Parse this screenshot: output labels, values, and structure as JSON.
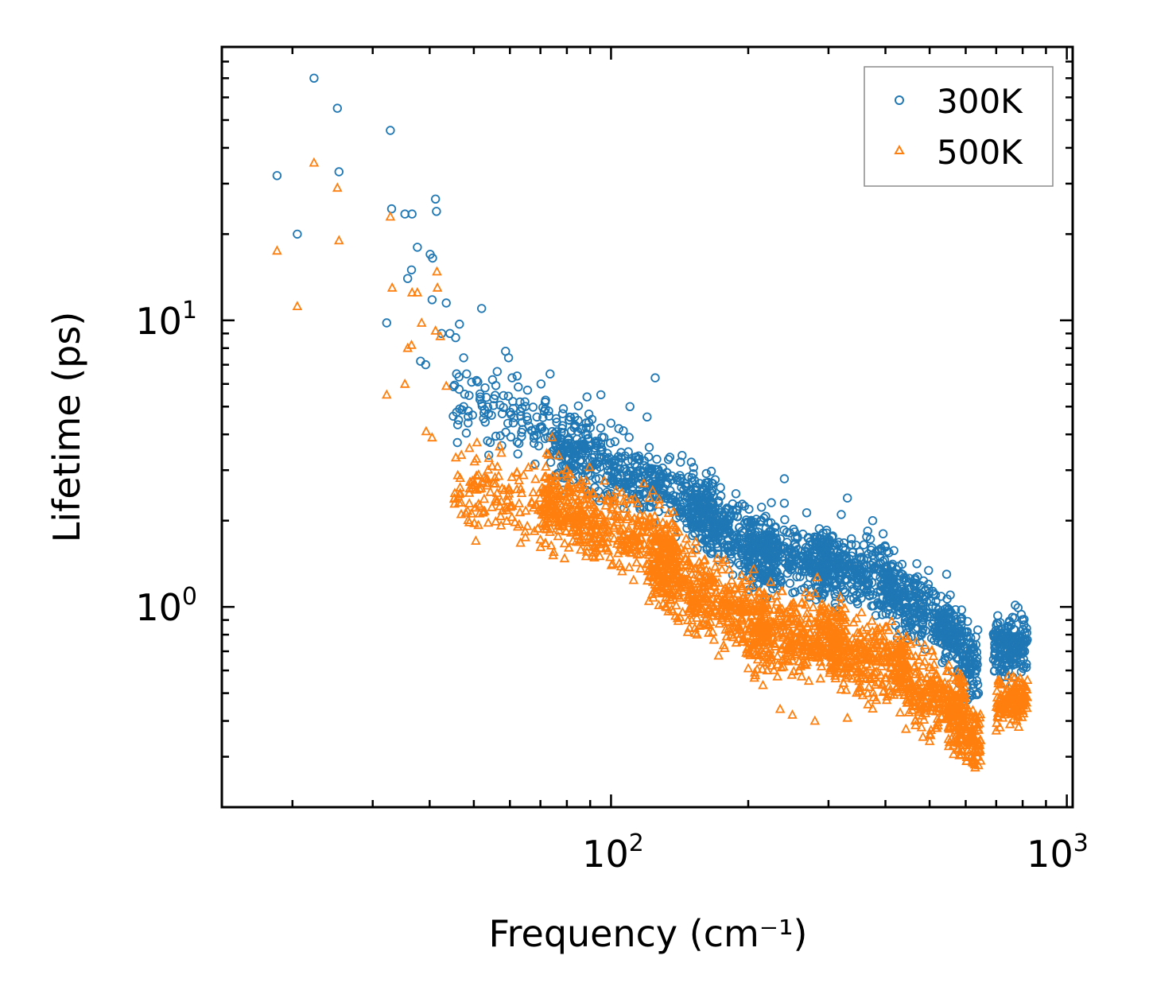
{
  "chart_data": {
    "type": "scatter",
    "title": "",
    "xlabel": "Frequency (cm⁻¹)",
    "ylabel": "Lifetime (ps)",
    "xscale": "log",
    "yscale": "log",
    "xlim": [
      14,
      1030
    ],
    "ylim": [
      0.2,
      90
    ],
    "x_ticks": [
      100,
      1000
    ],
    "x_tick_labels": [
      "10²",
      "10³"
    ],
    "y_ticks": [
      1,
      10
    ],
    "y_tick_labels": [
      "10⁰",
      "10¹"
    ],
    "legend": {
      "location": "top-right"
    },
    "series": [
      {
        "name": "300K",
        "marker": "circle",
        "color": "#1f77b4",
        "points": [
          [
            18.5,
            32
          ],
          [
            20.5,
            20
          ],
          [
            22.3,
            70
          ],
          [
            25.1,
            55
          ],
          [
            25.3,
            33
          ],
          [
            32.2,
            9.8
          ],
          [
            32.8,
            46
          ],
          [
            33,
            24.5
          ],
          [
            35.3,
            23.5
          ],
          [
            36.6,
            23.5
          ],
          [
            35.8,
            14
          ],
          [
            36.5,
            15
          ],
          [
            37.6,
            18
          ],
          [
            38.2,
            7.2
          ],
          [
            39.2,
            7.0
          ],
          [
            40.1,
            17
          ],
          [
            40.6,
            16.5
          ],
          [
            41.2,
            26.5
          ],
          [
            41.4,
            24
          ],
          [
            40.5,
            11.8
          ],
          [
            42.5,
            9
          ],
          [
            43.5,
            11.5
          ],
          [
            44.3,
            9.0
          ],
          [
            45.6,
            8.7
          ],
          [
            46.5,
            9.7
          ],
          [
            47.5,
            7.4
          ],
          [
            48.2,
            6.5
          ],
          [
            52,
            11
          ],
          [
            58.7,
            7.8
          ],
          [
            59.6,
            7.4
          ],
          [
            70.2,
            6.0
          ],
          [
            73.5,
            6.5
          ],
          [
            95,
            5.5
          ],
          [
            110,
            5.0
          ],
          [
            120,
            4.6
          ],
          [
            125,
            6.3
          ],
          [
            150,
            3.2
          ],
          [
            240,
            2.8
          ],
          [
            240,
            2.3
          ],
          [
            320,
            2.1
          ],
          [
            330,
            2.4
          ],
          [
            375,
            2.0
          ],
          [
            545,
            1.3
          ],
          [
            555,
            1.1
          ],
          [
            605,
            0.82
          ],
          [
            640,
            0.5
          ],
          [
            760,
            0.92
          ],
          [
            800,
            0.9
          ]
        ],
        "clusters": [
          {
            "x": [
              45,
              90
            ],
            "y_center": [
              5.2,
              3.8
            ],
            "spread": 0.13,
            "count": 160
          },
          {
            "x": [
              75,
              170
            ],
            "y_center": [
              3.6,
              2.2
            ],
            "spread": 0.12,
            "count": 480
          },
          {
            "x": [
              150,
              230
            ],
            "y_center": [
              2.2,
              1.45
            ],
            "spread": 0.12,
            "count": 300
          },
          {
            "x": [
              200,
              300
            ],
            "y_center": [
              1.6,
              1.4
            ],
            "spread": 0.12,
            "count": 300
          },
          {
            "x": [
              280,
              420
            ],
            "y_center": [
              1.45,
              1.25
            ],
            "spread": 0.12,
            "count": 300
          },
          {
            "x": [
              400,
              550
            ],
            "y_center": [
              1.15,
              0.85
            ],
            "spread": 0.11,
            "count": 260
          },
          {
            "x": [
              540,
              640
            ],
            "y_center": [
              0.85,
              0.6
            ],
            "spread": 0.12,
            "count": 160
          },
          {
            "x": [
              690,
              820
            ],
            "y_center": [
              0.72,
              0.75
            ],
            "spread": 0.1,
            "count": 180
          }
        ]
      },
      {
        "name": "500K",
        "marker": "triangle",
        "color": "#ff7f0e",
        "points": [
          [
            18.5,
            17.5
          ],
          [
            20.5,
            11.2
          ],
          [
            22.3,
            35.5
          ],
          [
            25.1,
            29
          ],
          [
            25.3,
            19
          ],
          [
            32.2,
            5.5
          ],
          [
            32.8,
            23
          ],
          [
            33.1,
            13
          ],
          [
            35.3,
            6.0
          ],
          [
            35.8,
            8.0
          ],
          [
            36.5,
            8.2
          ],
          [
            36.6,
            12.5
          ],
          [
            37.6,
            12.5
          ],
          [
            38.4,
            9.8
          ],
          [
            39.3,
            4.1
          ],
          [
            40.5,
            3.9
          ],
          [
            41.2,
            9.2
          ],
          [
            41.5,
            14.8
          ],
          [
            41.6,
            13.0
          ],
          [
            42.2,
            8.8
          ],
          [
            43.5,
            5.9
          ],
          [
            50.5,
            1.7
          ],
          [
            118,
            2.7
          ],
          [
            160,
            1.45
          ],
          [
            175,
            1.35
          ],
          [
            200,
            0.61
          ],
          [
            220,
            0.6
          ],
          [
            235,
            0.44
          ],
          [
            250,
            0.42
          ],
          [
            280,
            0.4
          ],
          [
            330,
            0.41
          ],
          [
            465,
            0.4
          ],
          [
            480,
            0.38
          ],
          [
            500,
            0.34
          ],
          [
            560,
            0.5
          ],
          [
            640,
            0.28
          ],
          [
            700,
            0.37
          ]
        ],
        "clusters": [
          {
            "x": [
              45,
              90
            ],
            "y_center": [
              2.6,
              2.3
            ],
            "spread": 0.15,
            "count": 200
          },
          {
            "x": [
              70,
              140
            ],
            "y_center": [
              2.2,
              1.6
            ],
            "spread": 0.13,
            "count": 450
          },
          {
            "x": [
              120,
              220
            ],
            "y_center": [
              1.4,
              0.85
            ],
            "spread": 0.14,
            "count": 450
          },
          {
            "x": [
              200,
              320
            ],
            "y_center": [
              0.85,
              0.75
            ],
            "spread": 0.14,
            "count": 380
          },
          {
            "x": [
              300,
              450
            ],
            "y_center": [
              0.72,
              0.62
            ],
            "spread": 0.14,
            "count": 330
          },
          {
            "x": [
              430,
              600
            ],
            "y_center": [
              0.55,
              0.45
            ],
            "spread": 0.13,
            "count": 260
          },
          {
            "x": [
              550,
              650
            ],
            "y_center": [
              0.42,
              0.34
            ],
            "spread": 0.12,
            "count": 160
          },
          {
            "x": [
              700,
              820
            ],
            "y_center": [
              0.47,
              0.48
            ],
            "spread": 0.08,
            "count": 150
          }
        ]
      }
    ]
  }
}
